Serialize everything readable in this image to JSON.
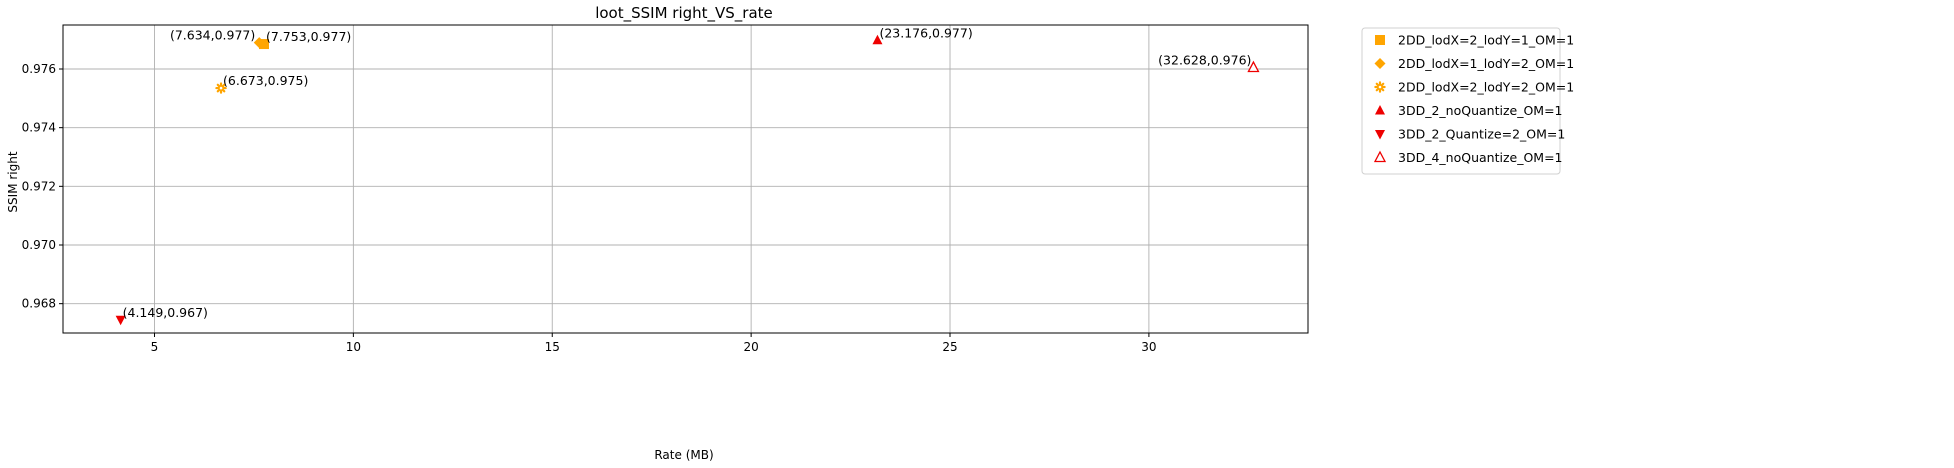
{
  "chart_data": {
    "type": "scatter",
    "title": "loot_SSIM right_VS_rate",
    "xlabel": "Rate (MB)",
    "ylabel": "SSIM right",
    "xlim": [
      2.7,
      34.0
    ],
    "ylim": [
      0.967,
      0.9775
    ],
    "xticks": [
      5,
      10,
      15,
      20,
      25,
      30
    ],
    "yticks": [
      0.968,
      0.97,
      0.972,
      0.974,
      0.976
    ],
    "grid": true,
    "legend_position": "outside-top-right",
    "series": [
      {
        "name": "2DD_lodX=2_lodY=1_OM=1",
        "marker": "square",
        "color": "#FFA500",
        "points": [
          {
            "x": 7.753,
            "y": 0.97685,
            "label": "(7.753,0.977)"
          }
        ]
      },
      {
        "name": "2DD_lodX=1_lodY=2_OM=1",
        "marker": "diamond",
        "color": "#FFA500",
        "points": [
          {
            "x": 7.634,
            "y": 0.9769,
            "label": "(7.634,0.977)"
          }
        ]
      },
      {
        "name": "2DD_lodX=2_lodY=2_OM=1",
        "marker": "gear",
        "color": "#FFA500",
        "points": [
          {
            "x": 6.673,
            "y": 0.97535,
            "label": "(6.673,0.975)"
          }
        ]
      },
      {
        "name": "3DD_2_noQuantize_OM=1",
        "marker": "triangle-up",
        "color": "#EE0000",
        "points": [
          {
            "x": 23.176,
            "y": 0.97698,
            "label": "(23.176,0.977)"
          }
        ]
      },
      {
        "name": "3DD_2_Quantize=2_OM=1",
        "marker": "triangle-down",
        "color": "#EE0000",
        "points": [
          {
            "x": 4.149,
            "y": 0.96745,
            "label": "(4.149,0.967)"
          }
        ]
      },
      {
        "name": "3DD_4_noQuantize_OM=1",
        "marker": "triangle-up-open",
        "color": "#EE0000",
        "points": [
          {
            "x": 32.628,
            "y": 0.97605,
            "label": "(32.628,0.976)"
          }
        ]
      }
    ]
  }
}
